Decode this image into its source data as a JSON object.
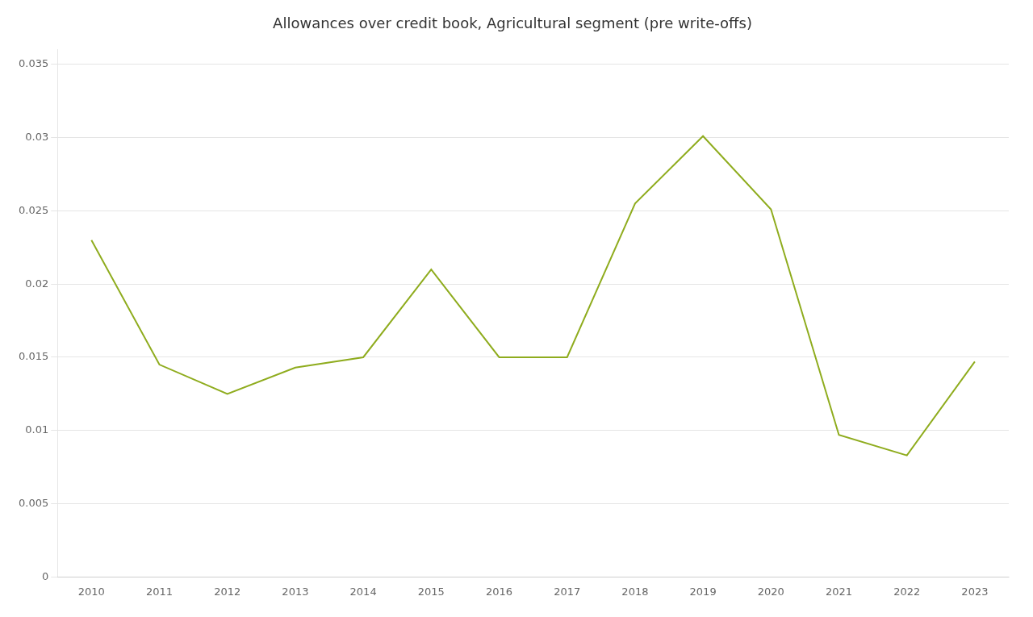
{
  "chart_data": {
    "type": "line",
    "title": "Allowances over credit book, Agricultural segment (pre write-offs)",
    "x": [
      2010,
      2011,
      2012,
      2013,
      2014,
      2015,
      2016,
      2017,
      2018,
      2019,
      2020,
      2021,
      2022,
      2023
    ],
    "values": [
      0.023,
      0.0145,
      0.0125,
      0.0143,
      0.015,
      0.021,
      0.015,
      0.015,
      0.0255,
      0.0301,
      0.0251,
      0.0097,
      0.0083,
      0.0147
    ],
    "color": "#8fac1e",
    "xlim": [
      2009.5,
      2023.5
    ],
    "xticks": [
      2010,
      2011,
      2012,
      2013,
      2014,
      2015,
      2016,
      2017,
      2018,
      2019,
      2020,
      2021,
      2022,
      2023
    ],
    "ylim": [
      0,
      0.036
    ],
    "yticks": [
      0,
      0.005,
      0.01,
      0.015,
      0.02,
      0.025,
      0.03,
      0.035
    ],
    "grid": "y"
  }
}
